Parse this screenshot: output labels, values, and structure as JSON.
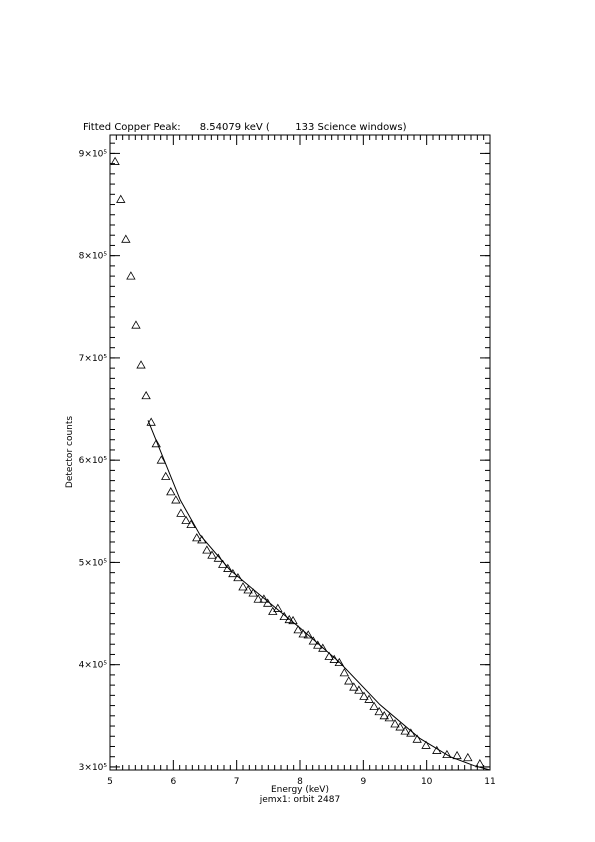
{
  "chart_data": {
    "type": "scatter",
    "title": "Fitted Copper Peak:      8.54079 keV (        133 Science windows)",
    "x_label": "Energy (keV)",
    "subtitle": "jemx1: orbit 2487",
    "y_label": "Detector counts",
    "xlim": [
      5,
      11
    ],
    "xticks": [
      5,
      6,
      7,
      8,
      9,
      10,
      11
    ],
    "xminor": 10,
    "ylim": [
      297000,
      918000
    ],
    "yticks": [
      {
        "value": 300000,
        "label": "3×10⁵"
      },
      {
        "value": 400000,
        "label": "4×10⁵"
      },
      {
        "value": 500000,
        "label": "5×10⁵"
      },
      {
        "value": 600000,
        "label": "6×10⁵"
      },
      {
        "value": 700000,
        "label": "7×10⁵"
      },
      {
        "value": 800000,
        "label": "8×10⁵"
      },
      {
        "value": 900000,
        "label": "9×10⁵"
      }
    ],
    "yminor": 10,
    "series": [
      {
        "color": "#000000",
        "marker": "triangle",
        "x": [
          5.08,
          5.17,
          5.25,
          5.33,
          5.41,
          5.49,
          5.57,
          5.65,
          5.73,
          5.81,
          5.88,
          5.96,
          6.04,
          6.12,
          6.2,
          6.28,
          6.37,
          6.45,
          6.53,
          6.61,
          6.71,
          6.78,
          6.86,
          6.94,
          7.02,
          7.1,
          7.18,
          7.26,
          7.34,
          7.43,
          7.49,
          7.57,
          7.65,
          7.75,
          7.83,
          7.89,
          7.97,
          8.05,
          8.13,
          8.21,
          8.28,
          8.36,
          8.46,
          8.54,
          8.62,
          8.7,
          8.77,
          8.85,
          8.93,
          9.01,
          9.09,
          9.17,
          9.25,
          9.33,
          9.41,
          9.5,
          9.58,
          9.66,
          9.75,
          9.85,
          9.99,
          10.16,
          10.32,
          10.48,
          10.65,
          10.84
        ],
        "values": [
          892000,
          855000,
          816000,
          780000,
          732000,
          693000,
          663000,
          637000,
          616000,
          600000,
          584000,
          569000,
          561000,
          548000,
          541000,
          537000,
          524000,
          522000,
          512000,
          507000,
          504000,
          498000,
          494000,
          489000,
          485000,
          476000,
          473000,
          470000,
          464000,
          464000,
          460000,
          452000,
          455000,
          447000,
          444000,
          443000,
          434000,
          430000,
          429000,
          423000,
          419000,
          416000,
          408000,
          405000,
          402000,
          392000,
          384000,
          378000,
          375000,
          369000,
          366000,
          359000,
          354000,
          350000,
          348000,
          342000,
          339000,
          335000,
          333000,
          327000,
          321000,
          316000,
          312000,
          311000,
          309000,
          303000
        ]
      },
      {
        "color": "#000000",
        "marker": "line",
        "x": [
          5.6,
          5.79,
          6.11,
          6.42,
          6.89,
          7.37,
          8.0,
          8.63,
          9.26,
          9.89,
          10.37,
          10.76,
          11.0
        ],
        "values": [
          639000,
          610000,
          561000,
          527000,
          493000,
          468000,
          436000,
          402000,
          361000,
          328000,
          310000,
          301000,
          297000
        ]
      }
    ]
  }
}
